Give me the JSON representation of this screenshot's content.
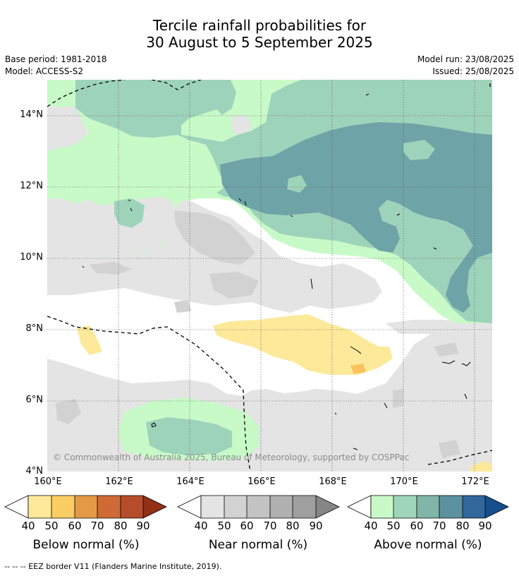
{
  "title": {
    "line1": "Tercile rainfall probabilities for",
    "line2": "30 August to 5 September 2025"
  },
  "meta": {
    "base_period": "Base period: 1981-2018",
    "model": "Model: ACCESS-S2",
    "model_run": "Model run: 23/08/2025",
    "issued": "Issued: 25/08/2025"
  },
  "map": {
    "lat_labels": [
      "14°N",
      "12°N",
      "10°N",
      "8°N",
      "6°N",
      "4°N"
    ],
    "lon_labels": [
      "160°E",
      "162°E",
      "164°E",
      "166°E",
      "168°E",
      "170°E",
      "172°E"
    ],
    "copyright": "© Commonwealth of Australia 2025, Bureau of Meteorology, supported by COSPPac",
    "colors": {
      "near_normal_light": "#e4e4e4",
      "near_normal_mid": "#d2d2d2",
      "above_40": "#c8fac8",
      "above_50": "#9ed3bb",
      "above_60": "#6ea4a7",
      "below_40": "#fde99a",
      "below_50": "#fbc25e"
    }
  },
  "colorbars": [
    {
      "title": "Below normal (%)",
      "ticks": [
        "40",
        "50",
        "60",
        "70",
        "80",
        "90"
      ],
      "colors": [
        "#fde99a",
        "#fbcd62",
        "#e39a46",
        "#cf6a36",
        "#b54d2a",
        "#923018"
      ]
    },
    {
      "title": "Near normal (%)",
      "ticks": [
        "40",
        "50",
        "60",
        "70",
        "80",
        "90"
      ],
      "colors": [
        "#e4e4e4",
        "#d2d2d2",
        "#c3c3c3",
        "#b0b0b0",
        "#9f9f9f",
        "#868686"
      ]
    },
    {
      "title": "Above normal (%)",
      "ticks": [
        "40",
        "50",
        "60",
        "70",
        "80",
        "90"
      ],
      "colors": [
        "#c8fac8",
        "#9fd6bb",
        "#80b5a7",
        "#5c92a0",
        "#31679a",
        "#15508c"
      ]
    }
  ],
  "footnote": "--  --  -- EEZ border V11 (Flanders Marine Institute, 2019)."
}
